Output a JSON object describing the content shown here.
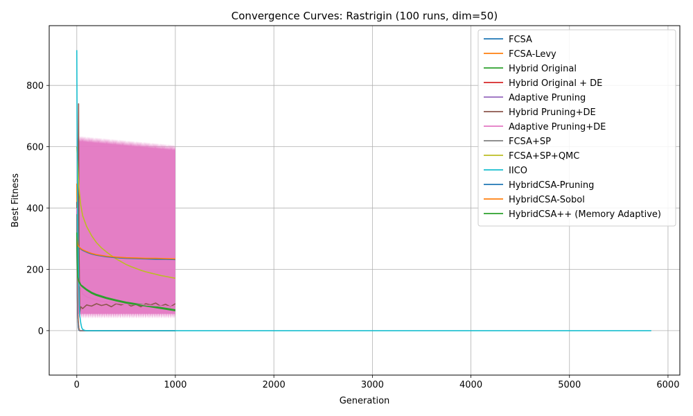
{
  "chart_data": {
    "type": "line",
    "title": "Convergence Curves: Rastrigin (100 runs, dim=50)",
    "xlabel": "Generation",
    "ylabel": "Best Fitness",
    "xlim": [
      -280,
      6120
    ],
    "ylim": [
      -145,
      995
    ],
    "xticks": [
      0,
      1000,
      2000,
      3000,
      4000,
      5000,
      6000
    ],
    "yticks": [
      0,
      200,
      400,
      600,
      800
    ],
    "grid": true,
    "legend_position": "top-right",
    "series": [
      {
        "name": "FCSA",
        "color": "#1f77b4",
        "x": [
          0,
          5,
          10,
          15,
          20,
          30,
          1000
        ],
        "y": [
          350,
          120,
          40,
          10,
          2,
          0,
          0
        ]
      },
      {
        "name": "FCSA-Levy",
        "color": "#ff7f0e",
        "x": [
          0,
          5,
          10,
          20,
          30,
          1000
        ],
        "y": [
          480,
          200,
          60,
          10,
          0,
          0
        ]
      },
      {
        "name": "Hybrid Original",
        "color": "#2ca02c",
        "x": [
          0,
          5,
          10,
          20,
          40,
          60,
          100,
          150,
          200,
          300,
          400,
          500,
          600,
          700,
          800,
          900,
          1000
        ],
        "y": [
          330,
          230,
          180,
          165,
          150,
          145,
          135,
          125,
          118,
          108,
          100,
          93,
          88,
          83,
          78,
          73,
          68
        ]
      },
      {
        "name": "Hybrid Original + DE",
        "color": "#d62728",
        "x": [
          0,
          5,
          10,
          20,
          30,
          1000
        ],
        "y": [
          400,
          150,
          50,
          5,
          0,
          0
        ]
      },
      {
        "name": "Adaptive Pruning",
        "color": "#9467bd",
        "x": [
          0,
          5,
          10,
          20,
          30,
          1000
        ],
        "y": [
          360,
          120,
          40,
          5,
          0,
          0
        ]
      },
      {
        "name": "Hybrid Pruning+DE",
        "color": "#8c564b",
        "x": [
          0,
          10,
          18,
          22,
          30,
          40,
          60,
          100,
          150,
          200,
          250,
          300,
          350,
          400,
          450,
          500,
          550,
          600,
          650,
          700,
          750,
          800,
          850,
          900,
          950,
          1000
        ],
        "y": [
          420,
          200,
          740,
          300,
          60,
          78,
          72,
          84,
          80,
          88,
          82,
          86,
          78,
          88,
          84,
          90,
          80,
          86,
          78,
          88,
          84,
          90,
          80,
          86,
          78,
          88
        ]
      },
      {
        "name": "Adaptive Pruning+DE",
        "color": "#e377c2",
        "x": [
          0,
          10,
          20,
          40,
          60,
          100,
          150,
          200,
          250,
          300,
          350,
          400,
          450,
          500,
          550,
          600,
          650,
          700,
          750,
          800,
          850,
          900,
          950,
          1000
        ],
        "y": [
          400,
          200,
          160,
          140,
          120,
          110,
          105,
          100,
          96,
          94,
          92,
          90,
          88,
          87,
          86,
          85,
          84,
          83,
          82,
          81,
          80,
          80,
          79,
          79
        ]
      },
      {
        "name": "FCSA+SP",
        "color": "#7f7f7f",
        "x": [
          0,
          5,
          10,
          20,
          30,
          1000
        ],
        "y": [
          380,
          140,
          40,
          5,
          0,
          0
        ]
      },
      {
        "name": "FCSA+SP+QMC",
        "color": "#bcbd22",
        "x": [
          0,
          10,
          20,
          40,
          60,
          100,
          150,
          200,
          250,
          300,
          350,
          400,
          450,
          500,
          550,
          600,
          650,
          700,
          750,
          800,
          850,
          900,
          950,
          1000
        ],
        "y": [
          600,
          540,
          470,
          410,
          375,
          340,
          310,
          287,
          270,
          257,
          245,
          234,
          225,
          216,
          209,
          203,
          197,
          192,
          188,
          184,
          180,
          177,
          174,
          171
        ]
      },
      {
        "name": "IICO",
        "color": "#17becf",
        "x": [
          0,
          3,
          6,
          10,
          15,
          20,
          25,
          30,
          40,
          50,
          60,
          80,
          100,
          5830
        ],
        "y": [
          915,
          700,
          500,
          350,
          230,
          150,
          90,
          50,
          25,
          10,
          4,
          1,
          0,
          0
        ]
      },
      {
        "name": "HybridCSA-Pruning",
        "color": "#1f77b4",
        "x": [
          0,
          10,
          20,
          40,
          60,
          100,
          150,
          200,
          300,
          400,
          500,
          600,
          700,
          800,
          900,
          1000
        ],
        "y": [
          300,
          278,
          272,
          266,
          262,
          256,
          250,
          246,
          241,
          238,
          236,
          235,
          234,
          233,
          233,
          232
        ]
      },
      {
        "name": "HybridCSA-Sobol",
        "color": "#ff7f0e",
        "x": [
          0,
          10,
          20,
          40,
          60,
          100,
          150,
          200,
          300,
          400,
          500,
          600,
          700,
          800,
          900,
          1000
        ],
        "y": [
          305,
          280,
          274,
          268,
          264,
          258,
          252,
          248,
          243,
          240,
          238,
          237,
          236,
          236,
          235,
          234
        ]
      },
      {
        "name": "HybridCSA++ (Memory Adaptive)",
        "color": "#2ca02c",
        "x": [
          0,
          5,
          10,
          20,
          40,
          60,
          100,
          150,
          200,
          300,
          400,
          500,
          600,
          700,
          800,
          900,
          1000
        ],
        "y": [
          320,
          220,
          175,
          160,
          148,
          142,
          132,
          122,
          115,
          105,
          97,
          90,
          85,
          80,
          75,
          70,
          65
        ]
      }
    ],
    "bands": [
      {
        "series": "Adaptive Pruning+DE",
        "color": "#e377c2",
        "x_start": 0,
        "x_end": 1000,
        "lower": 40,
        "upper_start": 630,
        "upper_end": 600
      }
    ]
  }
}
